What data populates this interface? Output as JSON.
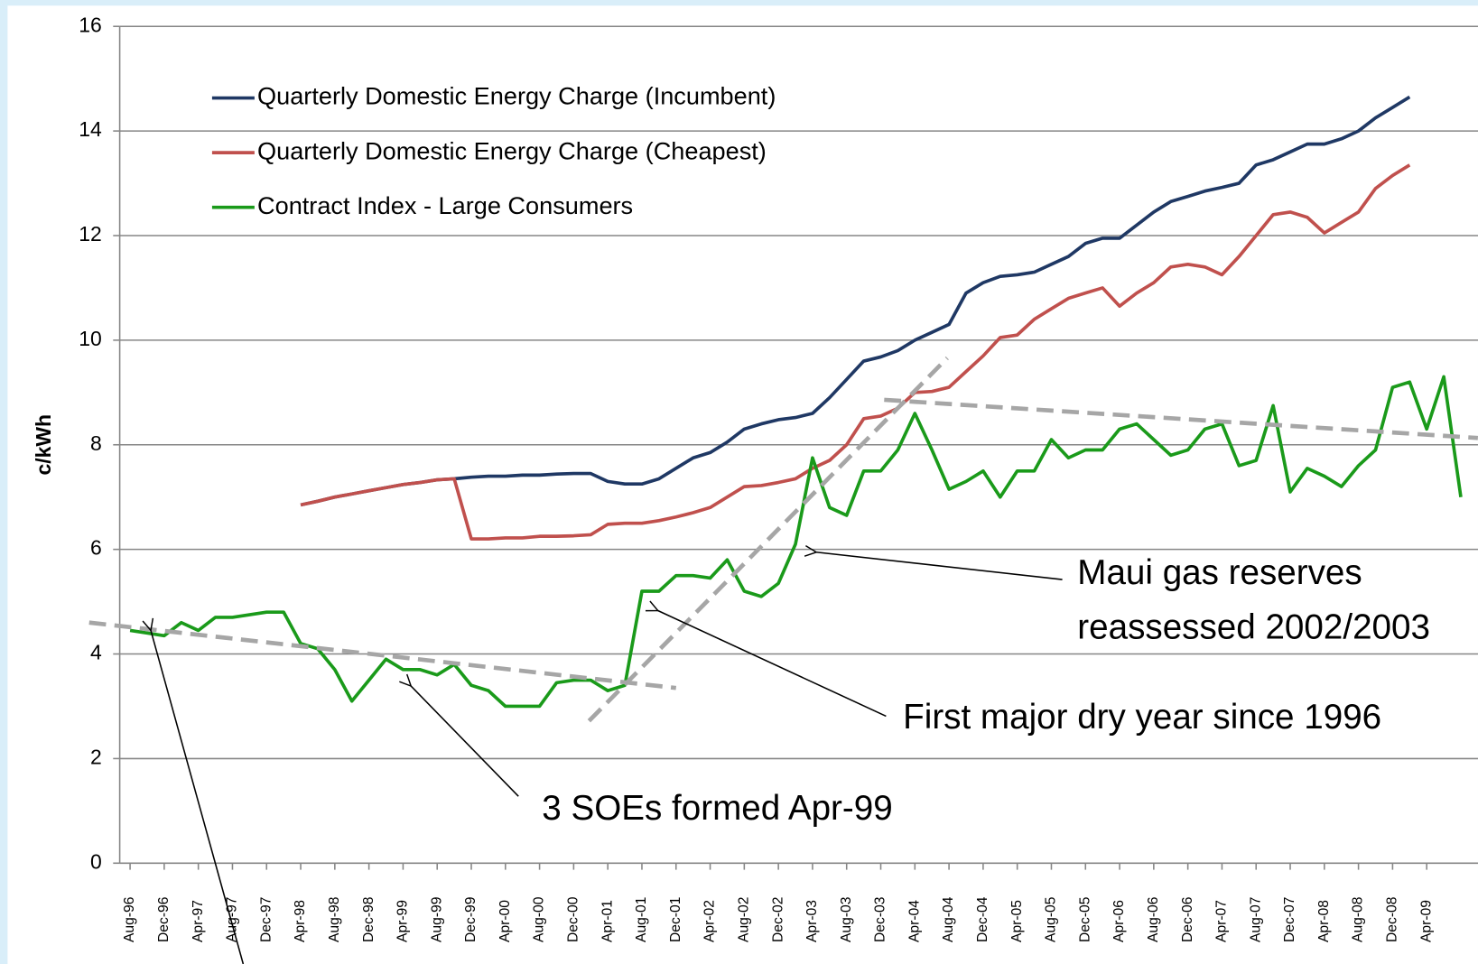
{
  "chart_data": {
    "type": "line",
    "y_label": "c/kWh",
    "categories": [
      "Aug-96",
      null,
      "Dec-96",
      null,
      "Apr-97",
      null,
      "Aug-97",
      null,
      "Dec-97",
      null,
      "Apr-98",
      null,
      "Aug-98",
      null,
      "Dec-98",
      null,
      "Apr-99",
      null,
      "Aug-99",
      null,
      "Dec-99",
      null,
      "Apr-00",
      null,
      "Aug-00",
      null,
      "Dec-00",
      null,
      "Apr-01",
      null,
      "Aug-01",
      null,
      "Dec-01",
      null,
      "Apr-02",
      null,
      "Aug-02",
      null,
      "Dec-02",
      null,
      "Apr-03",
      null,
      "Aug-03",
      null,
      "Dec-03",
      null,
      "Apr-04",
      null,
      "Aug-04",
      null,
      "Dec-04",
      null,
      "Apr-05",
      null,
      "Aug-05",
      null,
      "Dec-05",
      null,
      "Apr-06",
      null,
      "Aug-06",
      null,
      "Dec-06",
      null,
      "Apr-07",
      null,
      "Aug-07",
      null,
      "Dec-07",
      null,
      "Apr-08",
      null,
      "Aug-08",
      null,
      "Dec-08",
      null,
      "Apr-09",
      null,
      null
    ],
    "series": [
      {
        "name": "Quarterly Domestic Energy Charge (Incumbent)",
        "color": "#1f3864",
        "values": [
          null,
          null,
          null,
          null,
          null,
          null,
          null,
          null,
          null,
          null,
          6.85,
          6.92,
          7.0,
          7.06,
          7.12,
          7.18,
          7.24,
          7.28,
          7.33,
          7.35,
          7.38,
          7.4,
          7.4,
          7.42,
          7.42,
          7.44,
          7.45,
          7.45,
          7.3,
          7.25,
          7.25,
          7.35,
          7.55,
          7.75,
          7.85,
          8.05,
          8.3,
          8.4,
          8.48,
          8.52,
          8.6,
          8.9,
          9.25,
          9.6,
          9.68,
          9.8,
          10.0,
          10.15,
          10.3,
          10.9,
          11.1,
          11.22,
          11.25,
          11.3,
          11.45,
          11.6,
          11.85,
          11.95,
          11.95,
          12.2,
          12.45,
          12.65,
          12.75,
          12.85,
          12.92,
          13.0,
          13.35,
          13.45,
          13.6,
          13.75,
          13.75,
          13.85,
          14.0,
          14.25,
          14.45,
          14.65,
          null,
          null,
          null
        ]
      },
      {
        "name": "Quarterly Domestic Energy Charge (Cheapest)",
        "color": "#c0504d",
        "values": [
          null,
          null,
          null,
          null,
          null,
          null,
          null,
          null,
          null,
          null,
          6.85,
          6.92,
          7.0,
          7.06,
          7.12,
          7.18,
          7.24,
          7.28,
          7.33,
          7.35,
          6.2,
          6.2,
          6.22,
          6.22,
          6.25,
          6.25,
          6.26,
          6.28,
          6.48,
          6.5,
          6.5,
          6.55,
          6.62,
          6.7,
          6.8,
          7.0,
          7.2,
          7.22,
          7.28,
          7.35,
          7.55,
          7.7,
          8.0,
          8.5,
          8.55,
          8.7,
          9.0,
          9.02,
          9.1,
          9.4,
          9.7,
          10.05,
          10.1,
          10.4,
          10.6,
          10.8,
          10.9,
          11.0,
          10.65,
          10.9,
          11.1,
          11.4,
          11.45,
          11.4,
          11.25,
          11.6,
          12.0,
          12.4,
          12.45,
          12.35,
          12.05,
          12.25,
          12.45,
          12.9,
          13.15,
          13.35,
          null,
          null,
          null
        ]
      },
      {
        "name": "Contract Index - Large Consumers",
        "color": "#1a9a1a",
        "values": [
          4.45,
          4.4,
          4.35,
          4.6,
          4.45,
          4.7,
          4.7,
          4.75,
          4.8,
          4.8,
          4.2,
          4.1,
          3.7,
          3.1,
          3.5,
          3.9,
          3.7,
          3.7,
          3.6,
          3.8,
          3.4,
          3.3,
          3.0,
          3.0,
          3.0,
          3.45,
          3.5,
          3.5,
          3.3,
          3.4,
          5.2,
          5.2,
          5.5,
          5.5,
          5.45,
          5.8,
          5.2,
          5.1,
          5.35,
          6.1,
          7.75,
          6.8,
          6.65,
          7.5,
          7.5,
          7.9,
          8.6,
          7.9,
          7.15,
          7.3,
          7.5,
          7.0,
          7.5,
          7.5,
          8.1,
          7.75,
          7.9,
          7.9,
          8.3,
          8.4,
          8.1,
          7.8,
          7.9,
          8.3,
          8.4,
          7.6,
          7.7,
          8.75,
          7.1,
          7.55,
          7.4,
          7.2,
          7.6,
          7.9,
          9.1,
          9.2,
          8.3,
          9.3,
          7.0
        ]
      }
    ],
    "trend_lines": [
      {
        "from": [
          -2.4,
          4.6
        ],
        "to": [
          32,
          3.35
        ]
      },
      {
        "from": [
          26.9,
          2.72
        ],
        "to": [
          47.9,
          9.66
        ]
      },
      {
        "from": [
          44.2,
          8.86
        ],
        "to": [
          79,
          8.13
        ]
      }
    ],
    "annotations": [
      {
        "text": [
          "Maui gas reserves",
          "reassessed 2002/2003"
        ]
      },
      {
        "text": [
          "First major dry year since 1996"
        ]
      },
      {
        "text": [
          "3 SOEs formed Apr-99"
        ]
      }
    ],
    "ylim": [
      0,
      16
    ],
    "yticks": [
      0,
      2,
      4,
      6,
      8,
      10,
      12,
      14,
      16
    ],
    "grid": true,
    "legend": "upper left"
  }
}
